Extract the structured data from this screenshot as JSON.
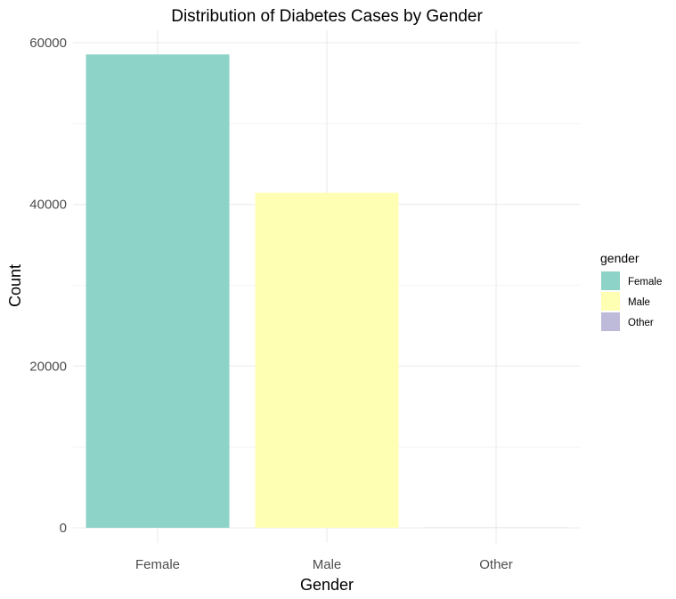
{
  "chart_data": {
    "type": "bar",
    "title": "Distribution of Diabetes Cases by Gender",
    "xlabel": "Gender",
    "ylabel": "Count",
    "categories": [
      "Female",
      "Male",
      "Other"
    ],
    "values": [
      58552,
      41430,
      18
    ],
    "ylim": [
      0,
      60000
    ],
    "yticks": [
      0,
      20000,
      40000,
      60000
    ],
    "ytick_labels": [
      "0",
      "20000",
      "40000",
      "60000"
    ],
    "grid": true,
    "colors": [
      "#8DD3C7",
      "#FFFFB3",
      "#BEBADA"
    ],
    "legend": {
      "title": "gender",
      "position": "right",
      "entries": [
        "Female",
        "Male",
        "Other"
      ]
    }
  }
}
